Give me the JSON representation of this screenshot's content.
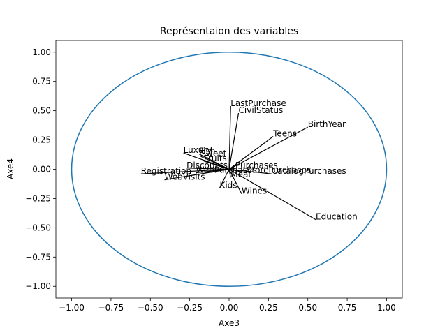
{
  "chart_data": {
    "type": "line",
    "title": "Représentaion des variables",
    "xlabel": "Axe3",
    "ylabel": "Axe4",
    "xlim": [
      -1.1,
      1.1
    ],
    "ylim": [
      -1.1,
      1.1
    ],
    "xticks": [
      -1.0,
      -0.75,
      -0.5,
      -0.25,
      0.0,
      0.25,
      0.5,
      0.75,
      1.0
    ],
    "yticks": [
      -1.0,
      -0.75,
      -0.5,
      -0.25,
      0.0,
      0.25,
      0.5,
      0.75,
      1.0
    ],
    "xtick_labels": [
      "−1.00",
      "−0.75",
      "−0.50",
      "−0.25",
      "0.00",
      "0.25",
      "0.50",
      "0.75",
      "1.00"
    ],
    "ytick_labels": [
      "−1.00",
      "−0.75",
      "−0.50",
      "−0.25",
      "0.00",
      "0.25",
      "0.50",
      "0.75",
      "1.00"
    ],
    "circle": {
      "radius": 1.0,
      "color": "#1f77b4"
    },
    "grid": false,
    "arrow_color": "#000000",
    "variables": [
      {
        "name": "LastPurchase",
        "x": 0.01,
        "y": 0.54
      },
      {
        "name": "CivilStatus",
        "x": 0.06,
        "y": 0.48
      },
      {
        "name": "BirthYear",
        "x": 0.5,
        "y": 0.36
      },
      {
        "name": "Teens",
        "x": 0.28,
        "y": 0.28
      },
      {
        "name": "Luxury",
        "x": -0.29,
        "y": 0.14
      },
      {
        "name": "Fish",
        "x": -0.19,
        "y": 0.13
      },
      {
        "name": "Sweet",
        "x": -0.18,
        "y": 0.11
      },
      {
        "name": "Fruits",
        "x": -0.16,
        "y": 0.07
      },
      {
        "name": "Discounts",
        "x": -0.27,
        "y": 0.01
      },
      {
        "name": "Purchases",
        "x": 0.04,
        "y": 0.01
      },
      {
        "name": "Registration",
        "x": -0.56,
        "y": -0.04
      },
      {
        "name": "WebVisits",
        "x": -0.41,
        "y": -0.09
      },
      {
        "name": "WebPurchases",
        "x": -0.21,
        "y": -0.03
      },
      {
        "name": "StorePurchases",
        "x": 0.11,
        "y": -0.03
      },
      {
        "name": "CatalogPurchases",
        "x": 0.27,
        "y": -0.04
      },
      {
        "name": "Meat",
        "x": 0.01,
        "y": -0.07
      },
      {
        "name": "Kids",
        "x": -0.06,
        "y": -0.16
      },
      {
        "name": "Wines",
        "x": 0.08,
        "y": -0.21
      },
      {
        "name": "Education",
        "x": 0.55,
        "y": -0.43
      }
    ]
  }
}
